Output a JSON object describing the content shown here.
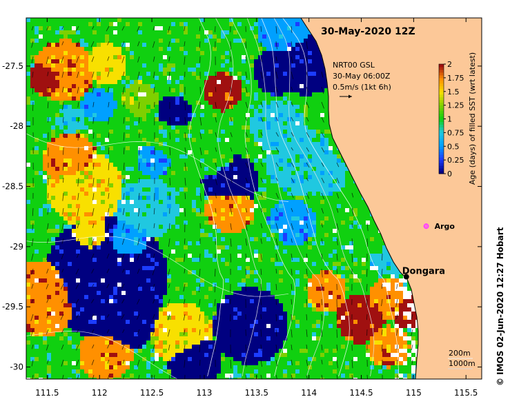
{
  "map": {
    "title": "30-May-2020 12Z",
    "lon_ticks": [
      {
        "value": 111.5,
        "label": "111.5"
      },
      {
        "value": 112,
        "label": "112"
      },
      {
        "value": 112.5,
        "label": "112.5"
      },
      {
        "value": 113,
        "label": "113"
      },
      {
        "value": 113.5,
        "label": "113.5"
      },
      {
        "value": 114,
        "label": "114"
      },
      {
        "value": 114.5,
        "label": "114.5"
      },
      {
        "value": 115,
        "label": "115"
      },
      {
        "value": 115.5,
        "label": "115.5"
      }
    ],
    "lat_ticks": [
      {
        "value": -27.5,
        "label": "-27.5"
      },
      {
        "value": -28,
        "label": "-28"
      },
      {
        "value": -28.5,
        "label": "-28.5"
      },
      {
        "value": -29,
        "label": "-29"
      },
      {
        "value": -29.5,
        "label": "-29.5"
      },
      {
        "value": -30,
        "label": "-30"
      }
    ],
    "lon_range": [
      111.3,
      115.65
    ],
    "lat_range": [
      -30.1,
      -27.1
    ],
    "current_info": {
      "line1": "NRT00 GSL",
      "line2": "30-May 06:00Z",
      "line3": "0.5m/s (1kt 6h)"
    },
    "colorbar": {
      "label": "Age (days) of filled SST (wrt latest)",
      "ticks": [
        "0",
        "0.25",
        "0.5",
        "0.75",
        "1",
        "1.25",
        "1.5",
        "1.75",
        "2"
      ],
      "range": [
        0,
        2
      ],
      "colors": [
        "#000080",
        "#1c3cff",
        "#00a0ff",
        "#20c8e0",
        "#10d010",
        "#7ed000",
        "#f8e000",
        "#ff9000",
        "#a01010"
      ]
    },
    "places": [
      {
        "name": "Dongara",
        "lon": 114.93,
        "lat": -29.25
      }
    ],
    "argo": {
      "label": "Argo",
      "lon": 115.12,
      "lat": -28.83,
      "color": "#ff40ff"
    },
    "isobaths": {
      "line1": "200m",
      "line2": "1000m"
    },
    "credit": "© IMOS 02-Jun-2020 12:27 Hobart",
    "land_color": "#fcc898"
  }
}
